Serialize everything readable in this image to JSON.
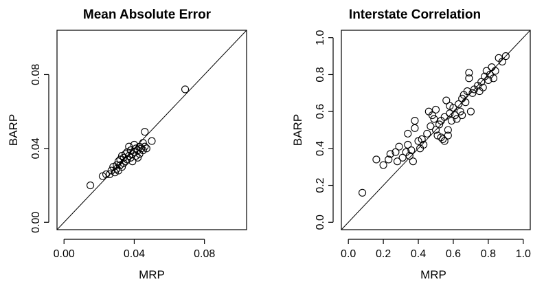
{
  "chart_data": [
    {
      "type": "scatter",
      "title": "Mean Absolute Error",
      "xlabel": "MRP",
      "ylabel": "BARP",
      "xlim": [
        -0.004,
        0.104
      ],
      "ylim": [
        -0.004,
        0.104
      ],
      "xticks": [
        0.0,
        0.04,
        0.08
      ],
      "yticks": [
        0.0,
        0.04,
        0.08
      ],
      "xtick_labels": [
        "0.00",
        "0.04",
        "0.08"
      ],
      "ytick_labels": [
        "0.00",
        "0.04",
        "0.08"
      ],
      "reference_line": "y = x",
      "grid": false,
      "points": [
        [
          0.015,
          0.02
        ],
        [
          0.022,
          0.025
        ],
        [
          0.024,
          0.026
        ],
        [
          0.026,
          0.026
        ],
        [
          0.027,
          0.028
        ],
        [
          0.028,
          0.03
        ],
        [
          0.029,
          0.027
        ],
        [
          0.03,
          0.031
        ],
        [
          0.03,
          0.029
        ],
        [
          0.031,
          0.033
        ],
        [
          0.031,
          0.028
        ],
        [
          0.032,
          0.034
        ],
        [
          0.032,
          0.031
        ],
        [
          0.033,
          0.03
        ],
        [
          0.033,
          0.036
        ],
        [
          0.034,
          0.032
        ],
        [
          0.034,
          0.035
        ],
        [
          0.035,
          0.037
        ],
        [
          0.035,
          0.033
        ],
        [
          0.036,
          0.034
        ],
        [
          0.036,
          0.038
        ],
        [
          0.037,
          0.036
        ],
        [
          0.037,
          0.041
        ],
        [
          0.038,
          0.035
        ],
        [
          0.038,
          0.039
        ],
        [
          0.039,
          0.037
        ],
        [
          0.039,
          0.033
        ],
        [
          0.04,
          0.038
        ],
        [
          0.04,
          0.042
        ],
        [
          0.041,
          0.036
        ],
        [
          0.041,
          0.04
        ],
        [
          0.042,
          0.039
        ],
        [
          0.042,
          0.035
        ],
        [
          0.043,
          0.041
        ],
        [
          0.043,
          0.037
        ],
        [
          0.044,
          0.04
        ],
        [
          0.045,
          0.043
        ],
        [
          0.045,
          0.039
        ],
        [
          0.046,
          0.049
        ],
        [
          0.046,
          0.041
        ],
        [
          0.047,
          0.04
        ],
        [
          0.05,
          0.044
        ],
        [
          0.069,
          0.072
        ]
      ]
    },
    {
      "type": "scatter",
      "title": "Interstate Correlation",
      "xlabel": "MRP",
      "ylabel": "BARP",
      "xlim": [
        -0.04,
        1.04
      ],
      "ylim": [
        -0.04,
        1.04
      ],
      "xticks": [
        0.0,
        0.2,
        0.4,
        0.6,
        0.8,
        1.0
      ],
      "yticks": [
        0.0,
        0.2,
        0.4,
        0.6,
        0.8,
        1.0
      ],
      "xtick_labels": [
        "0.0",
        "0.2",
        "0.4",
        "0.6",
        "0.8",
        "1.0"
      ],
      "ytick_labels": [
        "0.0",
        "0.2",
        "0.4",
        "0.6",
        "0.8",
        "1.0"
      ],
      "reference_line": "y = x",
      "grid": false,
      "points": [
        [
          0.08,
          0.16
        ],
        [
          0.16,
          0.34
        ],
        [
          0.2,
          0.31
        ],
        [
          0.23,
          0.34
        ],
        [
          0.24,
          0.37
        ],
        [
          0.27,
          0.38
        ],
        [
          0.28,
          0.33
        ],
        [
          0.29,
          0.41
        ],
        [
          0.31,
          0.35
        ],
        [
          0.33,
          0.38
        ],
        [
          0.34,
          0.42
        ],
        [
          0.34,
          0.48
        ],
        [
          0.35,
          0.36
        ],
        [
          0.36,
          0.39
        ],
        [
          0.37,
          0.33
        ],
        [
          0.38,
          0.51
        ],
        [
          0.38,
          0.55
        ],
        [
          0.4,
          0.44
        ],
        [
          0.41,
          0.4
        ],
        [
          0.42,
          0.45
        ],
        [
          0.43,
          0.42
        ],
        [
          0.45,
          0.48
        ],
        [
          0.46,
          0.6
        ],
        [
          0.47,
          0.52
        ],
        [
          0.48,
          0.58
        ],
        [
          0.49,
          0.56
        ],
        [
          0.5,
          0.61
        ],
        [
          0.5,
          0.5
        ],
        [
          0.51,
          0.47
        ],
        [
          0.52,
          0.53
        ],
        [
          0.53,
          0.55
        ],
        [
          0.53,
          0.46
        ],
        [
          0.54,
          0.45
        ],
        [
          0.55,
          0.57
        ],
        [
          0.55,
          0.44
        ],
        [
          0.56,
          0.66
        ],
        [
          0.57,
          0.5
        ],
        [
          0.57,
          0.47
        ],
        [
          0.58,
          0.63
        ],
        [
          0.58,
          0.59
        ],
        [
          0.59,
          0.55
        ],
        [
          0.6,
          0.62
        ],
        [
          0.61,
          0.58
        ],
        [
          0.62,
          0.56
        ],
        [
          0.63,
          0.64
        ],
        [
          0.64,
          0.6
        ],
        [
          0.65,
          0.67
        ],
        [
          0.65,
          0.58
        ],
        [
          0.66,
          0.69
        ],
        [
          0.67,
          0.65
        ],
        [
          0.68,
          0.71
        ],
        [
          0.69,
          0.81
        ],
        [
          0.69,
          0.78
        ],
        [
          0.7,
          0.6
        ],
        [
          0.71,
          0.7
        ],
        [
          0.72,
          0.72
        ],
        [
          0.74,
          0.74
        ],
        [
          0.75,
          0.71
        ],
        [
          0.76,
          0.76
        ],
        [
          0.77,
          0.73
        ],
        [
          0.78,
          0.79
        ],
        [
          0.79,
          0.82
        ],
        [
          0.8,
          0.77
        ],
        [
          0.81,
          0.8
        ],
        [
          0.82,
          0.84
        ],
        [
          0.83,
          0.78
        ],
        [
          0.84,
          0.82
        ],
        [
          0.86,
          0.89
        ],
        [
          0.88,
          0.87
        ],
        [
          0.9,
          0.9
        ]
      ]
    }
  ]
}
